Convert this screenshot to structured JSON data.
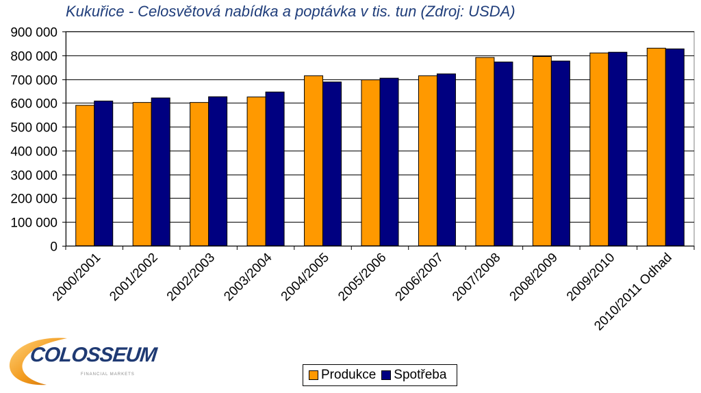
{
  "chart_data": {
    "type": "bar",
    "title": "Kukuřice - Celosvětová nabídka a poptávka v tis. tun  (Zdroj: USDA)",
    "categories": [
      "2000/2001",
      "2001/2002",
      "2002/2003",
      "2003/2004",
      "2004/2005",
      "2005/2006",
      "2006/2007",
      "2007/2008",
      "2008/2009",
      "2009/2010",
      "2010/2011 Odhad"
    ],
    "series": [
      {
        "name": "Produkce",
        "color": "#ff9900",
        "values": [
          590000,
          602000,
          602000,
          625000,
          714000,
          697000,
          714000,
          791000,
          795000,
          810000,
          830000
        ]
      },
      {
        "name": "Spotřeba",
        "color": "#000080",
        "values": [
          608000,
          621000,
          626000,
          646000,
          688000,
          704000,
          722000,
          772000,
          776000,
          813000,
          827000
        ]
      }
    ],
    "ylim": [
      0,
      900000
    ],
    "ytick_step": 100000,
    "ytick_labels": [
      "0",
      "100 000",
      "200 000",
      "300 000",
      "400 000",
      "500 000",
      "600 000",
      "700 000",
      "800 000",
      "900 000"
    ],
    "grid": true,
    "legend_position": "bottom-center"
  },
  "logo": {
    "brand": "COLOSSEUM",
    "subtitle": "FINANCIAL MARKETS"
  }
}
